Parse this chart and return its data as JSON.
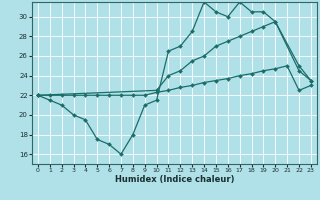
{
  "title": "",
  "xlabel": "Humidex (Indice chaleur)",
  "background_color": "#b0e0e8",
  "grid_color": "#ffffff",
  "line_color": "#1a6e6a",
  "xlim": [
    -0.5,
    23.5
  ],
  "ylim": [
    15.0,
    31.5
  ],
  "yticks": [
    16,
    18,
    20,
    22,
    24,
    26,
    28,
    30
  ],
  "xticks": [
    0,
    1,
    2,
    3,
    4,
    5,
    6,
    7,
    8,
    9,
    10,
    11,
    12,
    13,
    14,
    15,
    16,
    17,
    18,
    19,
    20,
    21,
    22,
    23
  ],
  "series": [
    {
      "x": [
        0,
        1,
        2,
        3,
        4,
        5,
        6,
        7,
        8,
        9,
        10,
        11,
        12,
        13,
        14,
        15,
        16,
        17,
        18,
        19,
        20,
        22,
        23
      ],
      "y": [
        22,
        21.5,
        21,
        20,
        19.5,
        17.5,
        17,
        16,
        18,
        21,
        21.5,
        26.5,
        27,
        28.5,
        31.5,
        30.5,
        30,
        31.5,
        30.5,
        30.5,
        29.5,
        24.5,
        23.5
      ]
    },
    {
      "x": [
        0,
        10,
        11,
        12,
        13,
        14,
        15,
        16,
        17,
        18,
        19,
        20,
        22,
        23
      ],
      "y": [
        22,
        22.5,
        24,
        24.5,
        25.5,
        26,
        27,
        27.5,
        28,
        28.5,
        29,
        29.5,
        25,
        23.5
      ]
    },
    {
      "x": [
        0,
        1,
        2,
        3,
        4,
        5,
        6,
        7,
        8,
        9,
        10,
        11,
        12,
        13,
        14,
        15,
        16,
        17,
        18,
        19,
        20,
        21,
        22,
        23
      ],
      "y": [
        22,
        22,
        22,
        22,
        22,
        22,
        22,
        22,
        22,
        22,
        22.3,
        22.5,
        22.8,
        23.0,
        23.3,
        23.5,
        23.7,
        24.0,
        24.2,
        24.5,
        24.7,
        25.0,
        22.5,
        23.0
      ]
    }
  ]
}
